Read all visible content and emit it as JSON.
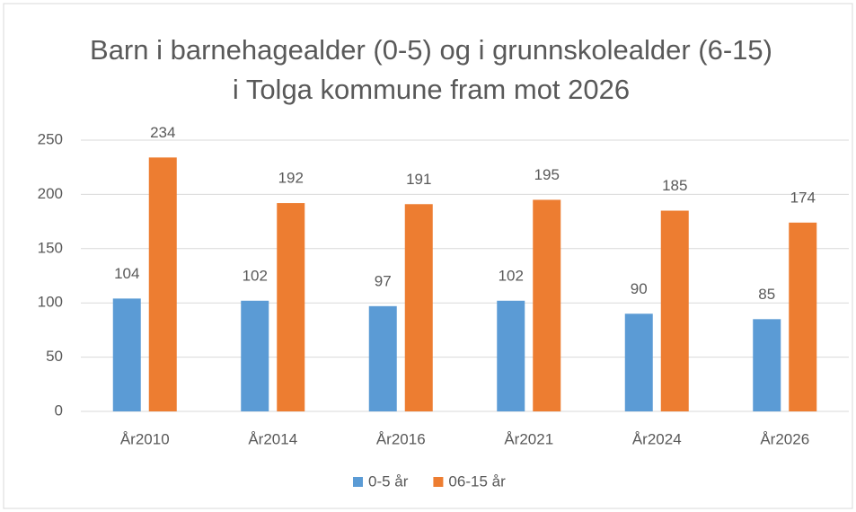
{
  "chart_data": {
    "type": "bar",
    "title": "Barn i barnehagealder (0-5) og i grunnskolealder (6-15) i Tolga kommune fram mot 2026",
    "categories": [
      "År2010",
      "År2014",
      "År2016",
      "År2021",
      "År2024",
      "År2026"
    ],
    "series": [
      {
        "name": "0-5 år",
        "color": "#5b9bd5",
        "values": [
          104,
          102,
          97,
          102,
          90,
          85
        ]
      },
      {
        "name": "06-15 år",
        "color": "#ed7d31",
        "values": [
          234,
          192,
          191,
          195,
          185,
          174
        ]
      }
    ],
    "ylim": [
      0,
      250
    ],
    "yticks": [
      0,
      50,
      100,
      150,
      200,
      250
    ],
    "grid": true,
    "legend": "bottom"
  }
}
